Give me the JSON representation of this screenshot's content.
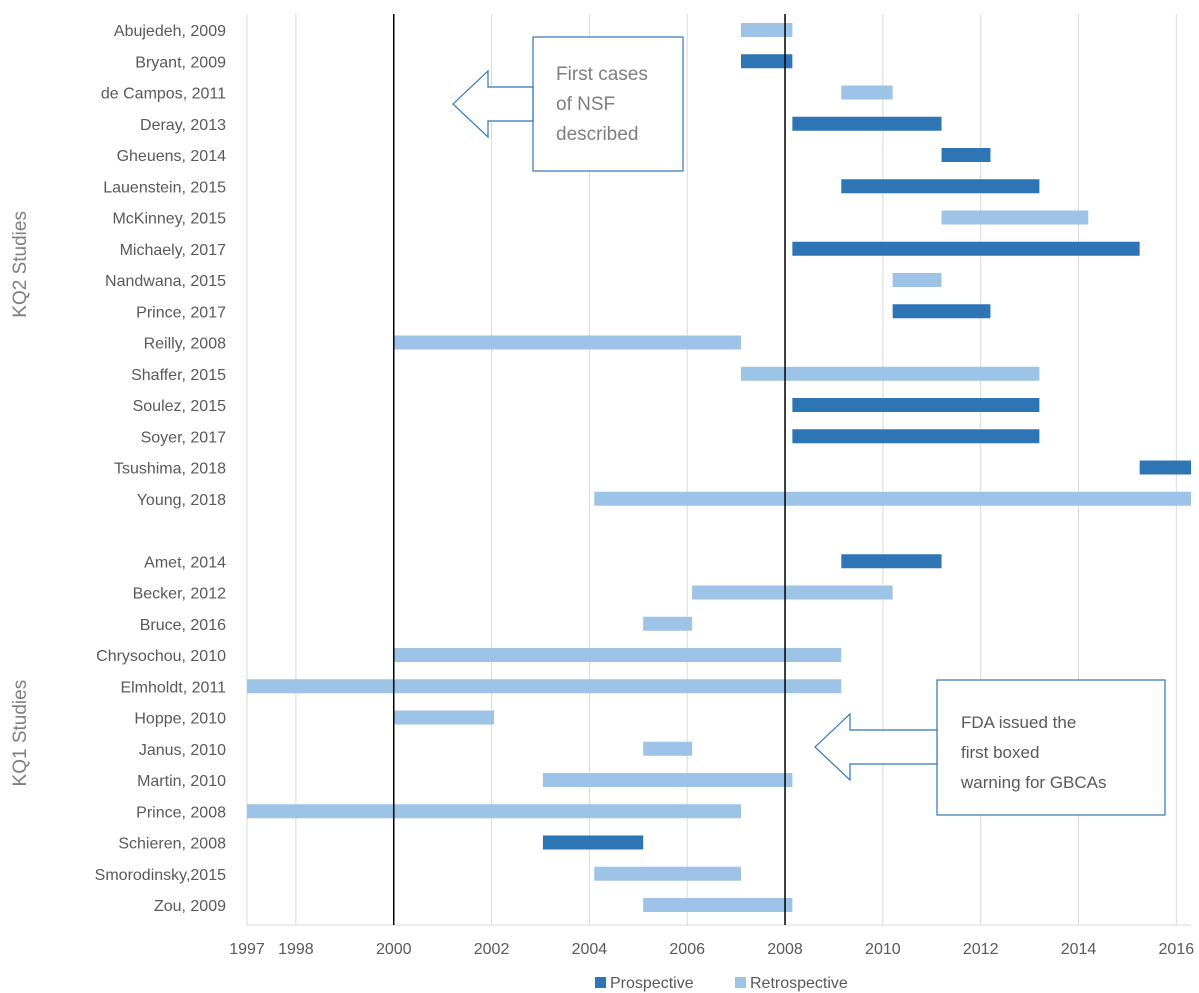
{
  "chart_data": {
    "type": "bar",
    "orientation": "horizontal-range",
    "x_ticks": [
      1997,
      1998,
      2000,
      2002,
      2004,
      2006,
      2008,
      2010,
      2012,
      2014,
      2016
    ],
    "xlim": [
      1997,
      2016.3
    ],
    "grid": true,
    "legend_position": "bottom",
    "colors": {
      "Prospective": "#2e75b6",
      "Retrospective": "#9dc3e6"
    },
    "legend": [
      "Prospective",
      "Retrospective"
    ],
    "reference_lines": [
      2000,
      2008
    ],
    "groups": [
      {
        "label": "KQ2 Studies",
        "rows": [
          {
            "study": "Abujedeh, 2009",
            "type": "Retrospective",
            "start": 2007.1,
            "end": 2008.15
          },
          {
            "study": "Bryant, 2009",
            "type": "Prospective",
            "start": 2007.1,
            "end": 2008.15
          },
          {
            "study": "de Campos, 2011",
            "type": "Retrospective",
            "start": 2009.15,
            "end": 2010.2
          },
          {
            "study": "Deray, 2013",
            "type": "Prospective",
            "start": 2008.15,
            "end": 2011.2
          },
          {
            "study": "Gheuens, 2014",
            "type": "Prospective",
            "start": 2011.2,
            "end": 2012.2
          },
          {
            "study": "Lauenstein, 2015",
            "type": "Prospective",
            "start": 2009.15,
            "end": 2013.2
          },
          {
            "study": "McKinney, 2015",
            "type": "Retrospective",
            "start": 2011.2,
            "end": 2014.2
          },
          {
            "study": "Michaely, 2017",
            "type": "Prospective",
            "start": 2008.15,
            "end": 2015.25
          },
          {
            "study": "Nandwana, 2015",
            "type": "Retrospective",
            "start": 2010.2,
            "end": 2011.2
          },
          {
            "study": "Prince, 2017",
            "type": "Prospective",
            "start": 2010.2,
            "end": 2012.2
          },
          {
            "study": "Reilly, 2008",
            "type": "Retrospective",
            "start": 2000.0,
            "end": 2007.1
          },
          {
            "study": "Shaffer, 2015",
            "type": "Retrospective",
            "start": 2007.1,
            "end": 2013.2
          },
          {
            "study": "Soulez, 2015",
            "type": "Prospective",
            "start": 2008.15,
            "end": 2013.2
          },
          {
            "study": "Soyer, 2017",
            "type": "Prospective",
            "start": 2008.15,
            "end": 2013.2
          },
          {
            "study": "Tsushima, 2018",
            "type": "Prospective",
            "start": 2015.25,
            "end": 2016.3
          },
          {
            "study": "Young, 2018",
            "type": "Retrospective",
            "start": 2004.1,
            "end": 2016.3
          }
        ]
      },
      {
        "label": "KQ1 Studies",
        "rows": [
          {
            "study": "Amet, 2014",
            "type": "Prospective",
            "start": 2009.15,
            "end": 2011.2
          },
          {
            "study": "Becker, 2012",
            "type": "Retrospective",
            "start": 2006.1,
            "end": 2010.2
          },
          {
            "study": "Bruce, 2016",
            "type": "Retrospective",
            "start": 2005.1,
            "end": 2006.1
          },
          {
            "study": "Chrysochou, 2010",
            "type": "Retrospective",
            "start": 2000.0,
            "end": 2009.15
          },
          {
            "study": "Elmholdt, 2011",
            "type": "Retrospective",
            "start": 1997.0,
            "end": 2009.15
          },
          {
            "study": "Hoppe, 2010",
            "type": "Retrospective",
            "start": 2000.0,
            "end": 2002.05
          },
          {
            "study": "Janus, 2010",
            "type": "Retrospective",
            "start": 2005.1,
            "end": 2006.1
          },
          {
            "study": "Martin, 2010",
            "type": "Retrospective",
            "start": 2003.05,
            "end": 2008.15
          },
          {
            "study": "Prince, 2008",
            "type": "Retrospective",
            "start": 1997.0,
            "end": 2007.1
          },
          {
            "study": "Schieren, 2008",
            "type": "Prospective",
            "start": 2003.05,
            "end": 2005.1
          },
          {
            "study": "Smorodinsky,2015",
            "type": "Retrospective",
            "start": 2004.1,
            "end": 2007.1
          },
          {
            "study": "Zou, 2009",
            "type": "Retrospective",
            "start": 2005.1,
            "end": 2008.15
          }
        ]
      }
    ],
    "annotations": [
      {
        "id": "nsf",
        "lines": [
          "First cases",
          "of NSF",
          "described"
        ],
        "points_to": 2000
      },
      {
        "id": "fda",
        "lines": [
          "FDA issued the",
          "first boxed",
          "warning for GBCAs"
        ],
        "points_to": 2008
      }
    ]
  }
}
